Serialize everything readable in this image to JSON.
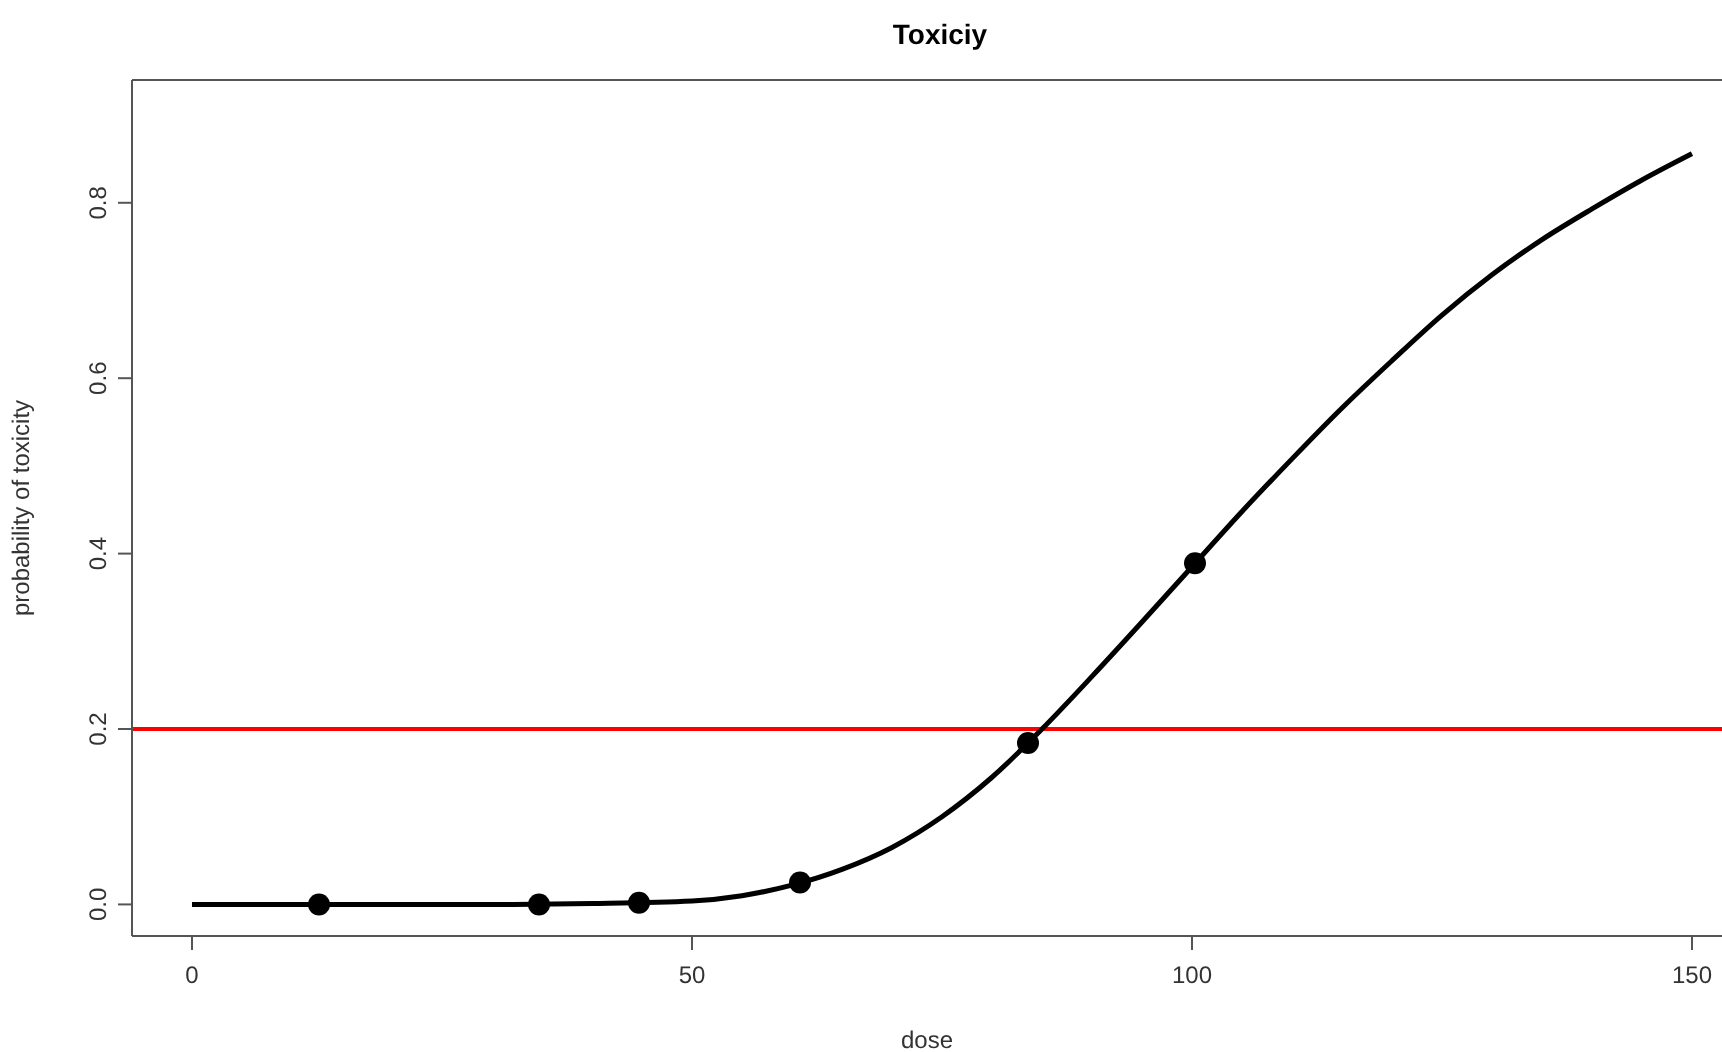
{
  "chart_data": {
    "type": "line",
    "title": "Toxiciy",
    "xlabel": "dose",
    "ylabel": "probability of toxicity",
    "xlim": [
      -6,
      153
    ],
    "ylim": [
      -0.036,
      0.94
    ],
    "xticks": [
      0,
      50,
      100,
      150
    ],
    "yticks": [
      {
        "value": 0,
        "label": "0.0"
      },
      {
        "value": 0.2,
        "label": "0.2"
      },
      {
        "value": 0.4,
        "label": "0.4"
      },
      {
        "value": 0.6,
        "label": "0.6"
      },
      {
        "value": 0.8,
        "label": "0.8"
      }
    ],
    "grid": false,
    "series": [
      {
        "color": "#000000",
        "marker": "none",
        "line_style": "solid",
        "x": [
          0,
          10,
          20,
          30,
          40,
          50,
          55,
          60,
          65,
          70,
          75,
          80,
          85,
          90,
          95,
          100,
          105,
          110,
          115,
          120,
          125,
          130,
          135,
          140,
          145,
          150
        ],
        "values": [
          0,
          0,
          0,
          0,
          0.001,
          0.004,
          0.01,
          0.022,
          0.04,
          0.065,
          0.1,
          0.145,
          0.2,
          0.26,
          0.322,
          0.385,
          0.448,
          0.508,
          0.566,
          0.62,
          0.672,
          0.718,
          0.758,
          0.793,
          0.826,
          0.856
        ]
      },
      {
        "type": "scatter",
        "color": "#000000",
        "marker": "circle",
        "x": [
          12.7,
          34.7,
          44.7,
          60.8,
          83.6,
          100.3
        ],
        "values": [
          0,
          0,
          0.002,
          0.025,
          0.184,
          0.389
        ]
      }
    ],
    "ref_lines": [
      {
        "axis": "y",
        "value": 0.2,
        "color": "#ff0000",
        "line_style": "solid"
      }
    ]
  }
}
